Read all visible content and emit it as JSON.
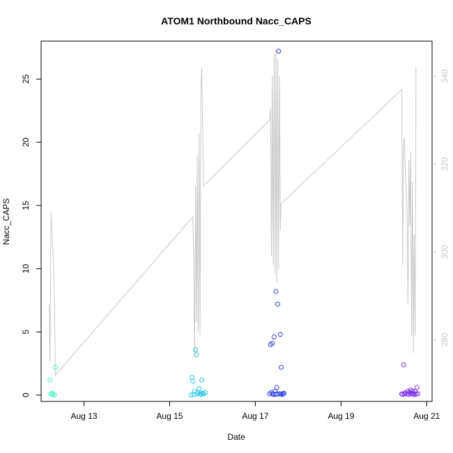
{
  "chart_data": {
    "type": "scatter",
    "title": "ATOM1 Northbound Nacc_CAPS",
    "xlabel": "Date",
    "ylabel": "Nacc_CAPS",
    "x_axis": {
      "unit": "date",
      "range": [
        "2024-08-12T00:00",
        "2024-08-21T03:00"
      ],
      "ticks": [
        {
          "value": "2024-08-13T00:00",
          "label": "Aug 13"
        },
        {
          "value": "2024-08-15T00:00",
          "label": "Aug 15"
        },
        {
          "value": "2024-08-17T00:00",
          "label": "Aug 17"
        },
        {
          "value": "2024-08-19T00:00",
          "label": "Aug 19"
        },
        {
          "value": "2024-08-21T00:00",
          "label": "Aug 21"
        }
      ]
    },
    "y_axis_left": {
      "range": [
        -0.5,
        28
      ],
      "ticks": [
        0,
        5,
        10,
        15,
        20,
        25
      ]
    },
    "y_axis_right": {
      "range": [
        266,
        348
      ],
      "ticks": [
        280,
        300,
        320,
        340
      ],
      "color": "#c8c8c8"
    },
    "grid": false,
    "legend": "none",
    "series": [
      {
        "type": "points",
        "axis": "left",
        "marker": "open-circle",
        "colors": [
          "#3df5c8",
          "#26c8f0",
          "#2a3fe8",
          "#7a2af0"
        ],
        "points": [
          [
            "2024-08-12T05:00",
            1.2
          ],
          [
            "2024-08-12T05:30",
            0.1
          ],
          [
            "2024-08-12T06:00",
            0.15
          ],
          [
            "2024-08-12T06:30",
            0.05
          ],
          [
            "2024-08-12T07:30",
            0.02
          ],
          [
            "2024-08-12T08:00",
            2.2
          ],
          [
            "2024-08-15T12:00",
            0.0
          ],
          [
            "2024-08-15T12:30",
            1.4
          ],
          [
            "2024-08-15T13:00",
            1.1
          ],
          [
            "2024-08-15T13:30",
            0.05
          ],
          [
            "2024-08-15T14:00",
            0.3
          ],
          [
            "2024-08-15T14:30",
            3.6
          ],
          [
            "2024-08-15T15:00",
            3.2
          ],
          [
            "2024-08-15T15:30",
            0.1
          ],
          [
            "2024-08-15T16:00",
            0.2
          ],
          [
            "2024-08-15T16:30",
            0.5
          ],
          [
            "2024-08-15T17:00",
            0.1
          ],
          [
            "2024-08-15T17:30",
            0.05
          ],
          [
            "2024-08-15T18:00",
            1.2
          ],
          [
            "2024-08-15T18:30",
            0.15
          ],
          [
            "2024-08-15T19:00",
            0.1
          ],
          [
            "2024-08-15T20:00",
            0.2
          ],
          [
            "2024-08-17T08:00",
            0.1
          ],
          [
            "2024-08-17T08:30",
            4.0
          ],
          [
            "2024-08-17T09:00",
            0.2
          ],
          [
            "2024-08-17T09:30",
            4.1
          ],
          [
            "2024-08-17T10:00",
            0.05
          ],
          [
            "2024-08-17T10:30",
            4.6
          ],
          [
            "2024-08-17T11:00",
            0.3
          ],
          [
            "2024-08-17T11:30",
            8.2
          ],
          [
            "2024-08-17T12:00",
            0.6
          ],
          [
            "2024-08-17T12:30",
            7.2
          ],
          [
            "2024-08-17T13:00",
            27.2
          ],
          [
            "2024-08-17T13:30",
            0.1
          ],
          [
            "2024-08-17T14:00",
            4.8
          ],
          [
            "2024-08-17T14:30",
            2.2
          ],
          [
            "2024-08-17T15:00",
            0.05
          ],
          [
            "2024-08-17T15:30",
            0.1
          ],
          [
            "2024-08-17T16:00",
            0.15
          ],
          [
            "2024-08-17T09:45",
            0.1
          ],
          [
            "2024-08-17T11:15",
            0.05
          ],
          [
            "2024-08-17T12:15",
            0.1
          ],
          [
            "2024-08-17T14:15",
            0.1
          ],
          [
            "2024-08-20T10:00",
            0.1
          ],
          [
            "2024-08-20T10:30",
            0.05
          ],
          [
            "2024-08-20T11:00",
            2.4
          ],
          [
            "2024-08-20T11:30",
            0.1
          ],
          [
            "2024-08-20T12:00",
            0.2
          ],
          [
            "2024-08-20T13:00",
            0.1
          ],
          [
            "2024-08-20T13:30",
            0.3
          ],
          [
            "2024-08-20T14:00",
            0.05
          ],
          [
            "2024-08-20T14:30",
            0.2
          ],
          [
            "2024-08-20T15:00",
            0.4
          ],
          [
            "2024-08-20T15:30",
            0.1
          ],
          [
            "2024-08-20T16:00",
            0.3
          ],
          [
            "2024-08-20T16:30",
            0.1
          ],
          [
            "2024-08-20T17:00",
            0.05
          ],
          [
            "2024-08-20T17:30",
            0.3
          ],
          [
            "2024-08-20T18:00",
            0.1
          ],
          [
            "2024-08-20T18:30",
            0.6
          ],
          [
            "2024-08-20T19:00",
            0.1
          ]
        ]
      },
      {
        "type": "line",
        "axis": "right",
        "color": "#c8c8c8",
        "points": [
          [
            "2024-08-12T04:30",
            288
          ],
          [
            "2024-08-12T05:00",
            275
          ],
          [
            "2024-08-12T05:30",
            309
          ],
          [
            "2024-08-12T07:00",
            297
          ],
          [
            "2024-08-12T07:30",
            288
          ],
          [
            "2024-08-12T08:00",
            272
          ],
          [
            "2024-08-15T13:00",
            308
          ],
          [
            "2024-08-15T13:30",
            299
          ],
          [
            "2024-08-15T14:00",
            276
          ],
          [
            "2024-08-15T14:30",
            315
          ],
          [
            "2024-08-15T15:00",
            284
          ],
          [
            "2024-08-15T15:30",
            322
          ],
          [
            "2024-08-15T16:00",
            282
          ],
          [
            "2024-08-15T16:30",
            327
          ],
          [
            "2024-08-15T17:00",
            281
          ],
          [
            "2024-08-15T17:30",
            337
          ],
          [
            "2024-08-15T18:00",
            342
          ],
          [
            "2024-08-15T19:00",
            315
          ],
          [
            "2024-08-17T08:00",
            330
          ],
          [
            "2024-08-17T08:30",
            333
          ],
          [
            "2024-08-17T09:00",
            299
          ],
          [
            "2024-08-17T09:30",
            340
          ],
          [
            "2024-08-17T10:00",
            297
          ],
          [
            "2024-08-17T10:30",
            345
          ],
          [
            "2024-08-17T11:00",
            295
          ],
          [
            "2024-08-17T11:30",
            346
          ],
          [
            "2024-08-17T12:00",
            293
          ],
          [
            "2024-08-17T12:30",
            344
          ],
          [
            "2024-08-17T13:00",
            296
          ],
          [
            "2024-08-17T13:30",
            340
          ],
          [
            "2024-08-17T14:00",
            305
          ],
          [
            "2024-08-17T14:30",
            311
          ],
          [
            "2024-08-20T10:00",
            337
          ],
          [
            "2024-08-20T10:30",
            297
          ],
          [
            "2024-08-20T11:00",
            325
          ],
          [
            "2024-08-20T11:30",
            326
          ],
          [
            "2024-08-20T12:00",
            318
          ],
          [
            "2024-08-20T13:00",
            310
          ],
          [
            "2024-08-20T13:30",
            288
          ],
          [
            "2024-08-20T14:00",
            321
          ],
          [
            "2024-08-20T14:30",
            306
          ],
          [
            "2024-08-20T15:00",
            323
          ],
          [
            "2024-08-20T15:30",
            281
          ],
          [
            "2024-08-20T16:00",
            316
          ],
          [
            "2024-08-20T16:30",
            277
          ],
          [
            "2024-08-20T17:00",
            304
          ],
          [
            "2024-08-20T17:30",
            281
          ],
          [
            "2024-08-20T18:00",
            342
          ]
        ]
      }
    ]
  }
}
